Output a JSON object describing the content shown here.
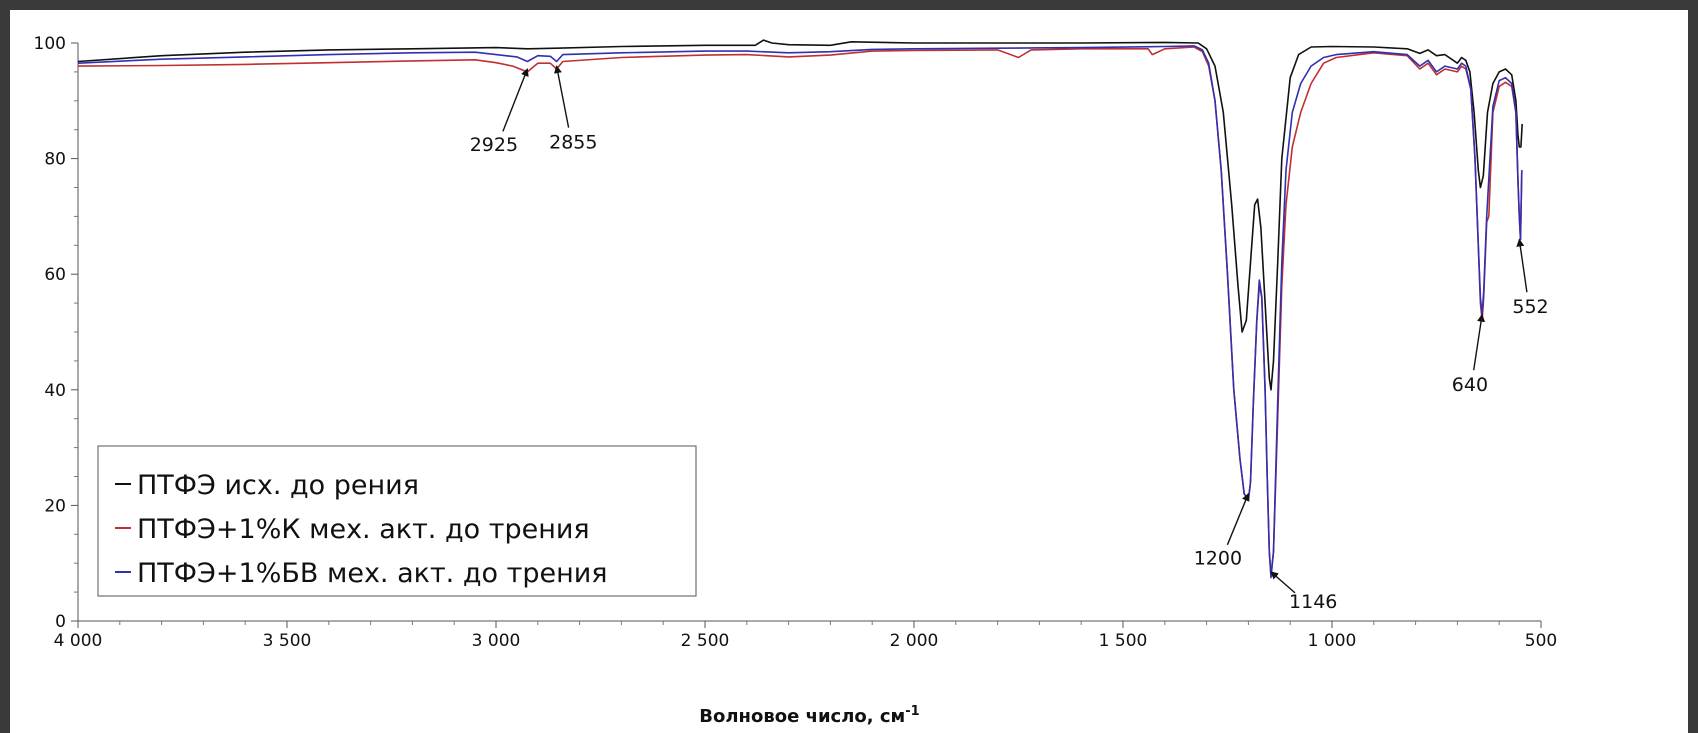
{
  "chart_data": {
    "type": "line",
    "title": "",
    "xlabel": "Волновое число, см",
    "xlabel_superscript": "-1",
    "ylabel": "",
    "xlim": [
      4000,
      500
    ],
    "ylim": [
      0,
      100
    ],
    "x_reversed": true,
    "x_ticks": [
      {
        "value": 4000,
        "label": "4 000"
      },
      {
        "value": 3500,
        "label": "3 500"
      },
      {
        "value": 3000,
        "label": "3 000"
      },
      {
        "value": 2500,
        "label": "2 500"
      },
      {
        "value": 2000,
        "label": "2 000"
      },
      {
        "value": 1500,
        "label": "1 500"
      },
      {
        "value": 1000,
        "label": "1 000"
      },
      {
        "value": 500,
        "label": "500"
      }
    ],
    "y_ticks": [
      {
        "value": 0,
        "label": "0"
      },
      {
        "value": 20,
        "label": "20"
      },
      {
        "value": 40,
        "label": "40"
      },
      {
        "value": 60,
        "label": "60"
      },
      {
        "value": 80,
        "label": "80"
      },
      {
        "value": 100,
        "label": "100"
      }
    ],
    "grid": false,
    "legend_position": "bottom-left",
    "series": [
      {
        "name": "ПТФЭ исх. до рения",
        "color": "#111111",
        "points": [
          [
            4000,
            96.8
          ],
          [
            3800,
            97.8
          ],
          [
            3600,
            98.4
          ],
          [
            3400,
            98.8
          ],
          [
            3200,
            99.0
          ],
          [
            3000,
            99.2
          ],
          [
            2925,
            99.0
          ],
          [
            2855,
            99.1
          ],
          [
            2700,
            99.4
          ],
          [
            2500,
            99.6
          ],
          [
            2380,
            99.6
          ],
          [
            2360,
            100.5
          ],
          [
            2340,
            100.0
          ],
          [
            2300,
            99.7
          ],
          [
            2200,
            99.6
          ],
          [
            2150,
            100.2
          ],
          [
            2000,
            100.0
          ],
          [
            1800,
            100.0
          ],
          [
            1600,
            100.0
          ],
          [
            1400,
            100.1
          ],
          [
            1320,
            100.0
          ],
          [
            1300,
            99.0
          ],
          [
            1280,
            96.0
          ],
          [
            1260,
            88.0
          ],
          [
            1240,
            72.0
          ],
          [
            1225,
            58.0
          ],
          [
            1215,
            50.0
          ],
          [
            1205,
            52.0
          ],
          [
            1195,
            62.0
          ],
          [
            1185,
            72.0
          ],
          [
            1178,
            73.0
          ],
          [
            1170,
            68.0
          ],
          [
            1160,
            55.0
          ],
          [
            1150,
            42.0
          ],
          [
            1146,
            40.0
          ],
          [
            1140,
            45.0
          ],
          [
            1130,
            62.0
          ],
          [
            1120,
            80.0
          ],
          [
            1100,
            94.0
          ],
          [
            1080,
            98.0
          ],
          [
            1050,
            99.3
          ],
          [
            1000,
            99.4
          ],
          [
            900,
            99.3
          ],
          [
            820,
            99.0
          ],
          [
            790,
            98.2
          ],
          [
            770,
            98.8
          ],
          [
            750,
            97.8
          ],
          [
            730,
            98.0
          ],
          [
            700,
            96.5
          ],
          [
            690,
            97.5
          ],
          [
            680,
            97.0
          ],
          [
            670,
            95.0
          ],
          [
            660,
            88.0
          ],
          [
            650,
            78.0
          ],
          [
            645,
            75.0
          ],
          [
            638,
            77.0
          ],
          [
            628,
            88.0
          ],
          [
            615,
            93.0
          ],
          [
            600,
            95.0
          ],
          [
            585,
            95.5
          ],
          [
            570,
            94.5
          ],
          [
            560,
            90.0
          ],
          [
            555,
            84.0
          ],
          [
            552,
            82.0
          ],
          [
            548,
            82.0
          ],
          [
            545,
            86.0
          ]
        ]
      },
      {
        "name": "ПТФЭ+1%К мех. акт. до трения",
        "color": "#c03030",
        "points": [
          [
            4000,
            96.0
          ],
          [
            3800,
            96.1
          ],
          [
            3600,
            96.3
          ],
          [
            3400,
            96.6
          ],
          [
            3200,
            96.9
          ],
          [
            3050,
            97.1
          ],
          [
            3000,
            96.6
          ],
          [
            2960,
            96.0
          ],
          [
            2925,
            95.0
          ],
          [
            2900,
            96.5
          ],
          [
            2870,
            96.5
          ],
          [
            2855,
            95.5
          ],
          [
            2840,
            96.8
          ],
          [
            2700,
            97.5
          ],
          [
            2500,
            97.9
          ],
          [
            2400,
            98.0
          ],
          [
            2300,
            97.6
          ],
          [
            2200,
            97.9
          ],
          [
            2100,
            98.6
          ],
          [
            2000,
            98.7
          ],
          [
            1800,
            98.8
          ],
          [
            1750,
            97.5
          ],
          [
            1720,
            98.8
          ],
          [
            1600,
            99.0
          ],
          [
            1440,
            99.0
          ],
          [
            1430,
            98.0
          ],
          [
            1400,
            99.0
          ],
          [
            1330,
            99.3
          ],
          [
            1310,
            98.5
          ],
          [
            1295,
            96.0
          ],
          [
            1280,
            90.0
          ],
          [
            1265,
            78.0
          ],
          [
            1250,
            60.0
          ],
          [
            1235,
            40.0
          ],
          [
            1220,
            28.0
          ],
          [
            1210,
            22.0
          ],
          [
            1200,
            21.0
          ],
          [
            1195,
            24.0
          ],
          [
            1188,
            38.0
          ],
          [
            1180,
            52.0
          ],
          [
            1174,
            58.0
          ],
          [
            1168,
            56.0
          ],
          [
            1160,
            40.0
          ],
          [
            1155,
            25.0
          ],
          [
            1150,
            12.0
          ],
          [
            1146,
            8.0
          ],
          [
            1140,
            12.0
          ],
          [
            1130,
            35.0
          ],
          [
            1120,
            58.0
          ],
          [
            1110,
            72.0
          ],
          [
            1095,
            82.0
          ],
          [
            1075,
            88.0
          ],
          [
            1050,
            93.0
          ],
          [
            1020,
            96.5
          ],
          [
            990,
            97.5
          ],
          [
            900,
            98.3
          ],
          [
            820,
            97.8
          ],
          [
            790,
            95.5
          ],
          [
            770,
            96.5
          ],
          [
            750,
            94.5
          ],
          [
            730,
            95.5
          ],
          [
            700,
            95.0
          ],
          [
            690,
            96.0
          ],
          [
            680,
            95.5
          ],
          [
            668,
            92.0
          ],
          [
            658,
            80.0
          ],
          [
            650,
            65.0
          ],
          [
            645,
            55.0
          ],
          [
            641,
            52.0
          ],
          [
            637,
            56.0
          ],
          [
            630,
            69.0
          ],
          [
            625,
            70.0
          ],
          [
            615,
            88.0
          ],
          [
            600,
            92.5
          ],
          [
            585,
            93.2
          ],
          [
            570,
            92.5
          ],
          [
            560,
            88.0
          ],
          [
            555,
            76.0
          ],
          [
            552,
            70.0
          ],
          [
            549,
            66.0
          ],
          [
            546,
            78.0
          ]
        ]
      },
      {
        "name": "ПТФЭ+1%БВ мех. акт. до трения",
        "color": "#3030b0",
        "points": [
          [
            4000,
            96.5
          ],
          [
            3800,
            97.2
          ],
          [
            3600,
            97.6
          ],
          [
            3400,
            98.0
          ],
          [
            3200,
            98.3
          ],
          [
            3050,
            98.4
          ],
          [
            3000,
            98.0
          ],
          [
            2950,
            97.6
          ],
          [
            2925,
            96.8
          ],
          [
            2900,
            97.8
          ],
          [
            2870,
            97.7
          ],
          [
            2855,
            96.8
          ],
          [
            2840,
            98.0
          ],
          [
            2700,
            98.3
          ],
          [
            2500,
            98.6
          ],
          [
            2400,
            98.6
          ],
          [
            2300,
            98.3
          ],
          [
            2200,
            98.5
          ],
          [
            2100,
            98.9
          ],
          [
            2000,
            99.0
          ],
          [
            1800,
            99.1
          ],
          [
            1600,
            99.2
          ],
          [
            1400,
            99.4
          ],
          [
            1330,
            99.5
          ],
          [
            1310,
            98.8
          ],
          [
            1295,
            96.5
          ],
          [
            1280,
            90.0
          ],
          [
            1265,
            78.0
          ],
          [
            1250,
            60.0
          ],
          [
            1235,
            40.0
          ],
          [
            1220,
            28.0
          ],
          [
            1210,
            22.0
          ],
          [
            1200,
            21.0
          ],
          [
            1195,
            24.0
          ],
          [
            1188,
            38.0
          ],
          [
            1180,
            52.0
          ],
          [
            1174,
            59.0
          ],
          [
            1168,
            56.0
          ],
          [
            1160,
            40.0
          ],
          [
            1155,
            25.0
          ],
          [
            1150,
            12.0
          ],
          [
            1146,
            7.5
          ],
          [
            1140,
            12.0
          ],
          [
            1130,
            38.0
          ],
          [
            1120,
            62.0
          ],
          [
            1110,
            78.0
          ],
          [
            1095,
            88.0
          ],
          [
            1075,
            93.0
          ],
          [
            1050,
            96.0
          ],
          [
            1020,
            97.5
          ],
          [
            990,
            98.0
          ],
          [
            900,
            98.5
          ],
          [
            820,
            98.0
          ],
          [
            790,
            96.0
          ],
          [
            770,
            97.0
          ],
          [
            750,
            95.0
          ],
          [
            730,
            96.0
          ],
          [
            700,
            95.5
          ],
          [
            690,
            96.5
          ],
          [
            680,
            96.0
          ],
          [
            668,
            92.0
          ],
          [
            658,
            80.0
          ],
          [
            650,
            65.0
          ],
          [
            645,
            56.0
          ],
          [
            641,
            53.0
          ],
          [
            637,
            57.0
          ],
          [
            630,
            70.0
          ],
          [
            615,
            89.0
          ],
          [
            600,
            93.5
          ],
          [
            585,
            94.0
          ],
          [
            570,
            93.0
          ],
          [
            560,
            88.0
          ],
          [
            555,
            76.0
          ],
          [
            552,
            70.0
          ],
          [
            549,
            66.0
          ],
          [
            546,
            78.0
          ]
        ]
      }
    ],
    "annotations": [
      {
        "label": "2925",
        "x": 2925,
        "y": 95.5,
        "label_x": 3005,
        "label_y": 82.5
      },
      {
        "label": "2855",
        "x": 2855,
        "y": 96.0,
        "label_x": 2815,
        "label_y": 83.0
      },
      {
        "label": "1200",
        "x": 1200,
        "y": 22.0,
        "label_x": 1273,
        "label_y": 11.0
      },
      {
        "label": "1146",
        "x": 1146,
        "y": 8.5,
        "label_x": 1045,
        "label_y": 3.5
      },
      {
        "label": "640",
        "x": 641,
        "y": 53.0,
        "label_x": 670,
        "label_y": 41.0
      },
      {
        "label": "552",
        "x": 552,
        "y": 66.0,
        "label_x": 525,
        "label_y": 54.5
      }
    ]
  }
}
